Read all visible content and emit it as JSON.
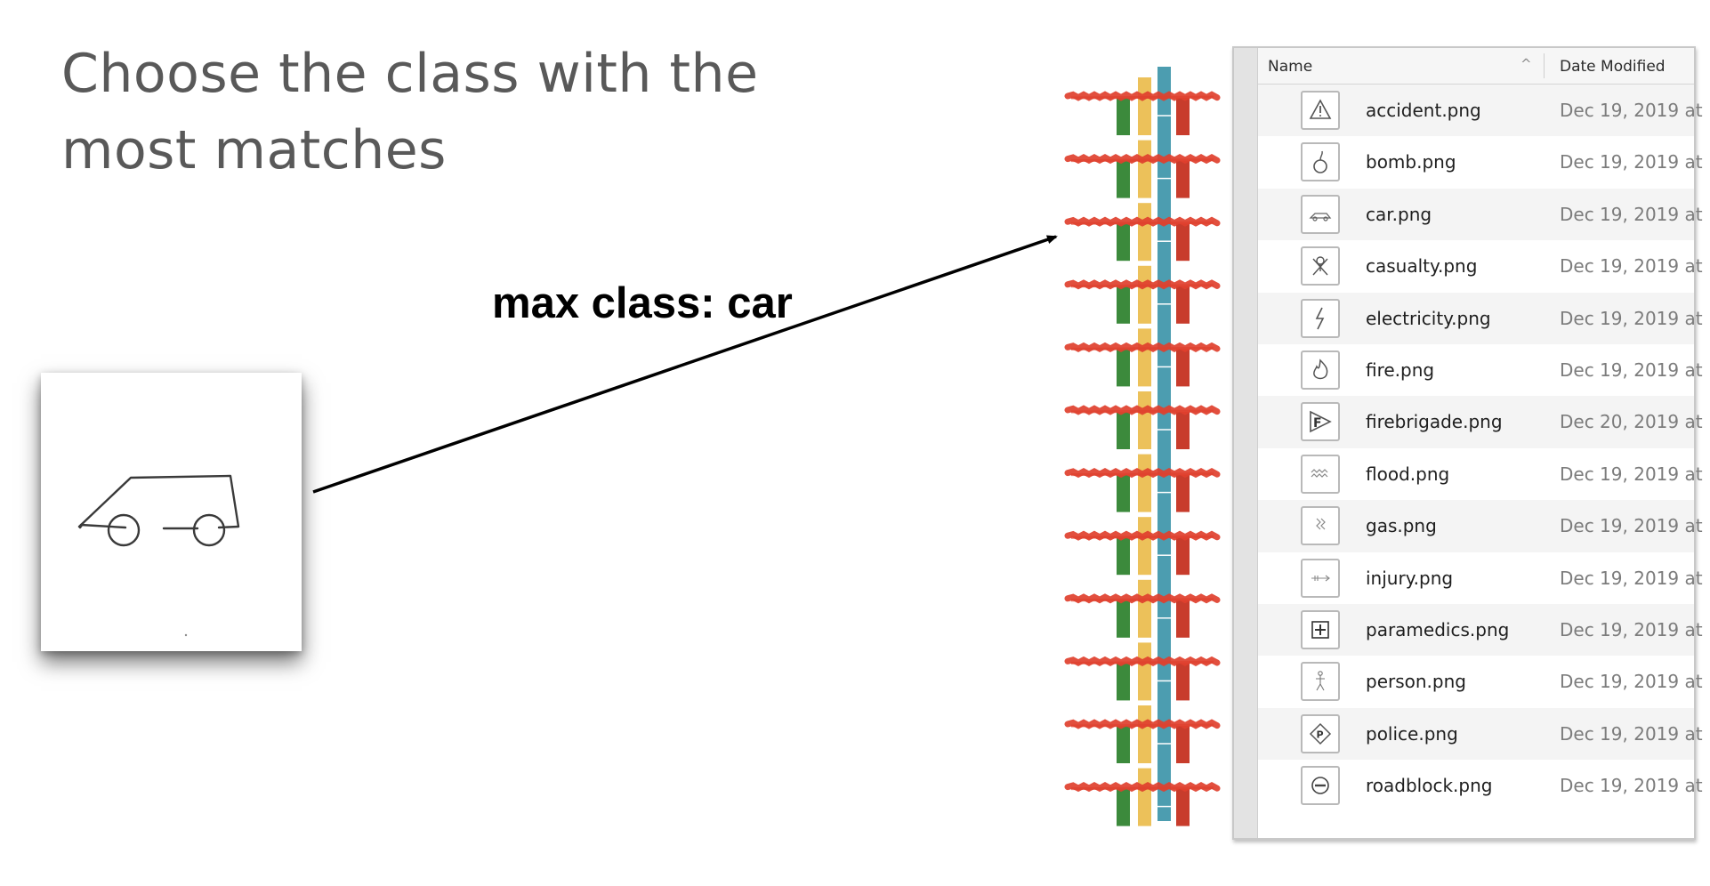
{
  "slide": {
    "title": "Choose the class with the most matches",
    "annotation": "max class: car"
  },
  "colors": {
    "title": "#595959",
    "bar_green": "#3c8a3c",
    "bar_yellow": "#ecc15a",
    "bar_blue": "#4c9db0",
    "bar_red": "#c83c2c",
    "strike_red": "#e0402e"
  },
  "bar_groups": 12,
  "finder": {
    "header": {
      "name_label": "Name",
      "sort_icon": "chevron-up-icon",
      "date_label": "Date Modified"
    },
    "files": [
      {
        "name": "accident.png",
        "date": "Dec 19, 2019 at",
        "icon": "warning-icon"
      },
      {
        "name": "bomb.png",
        "date": "Dec 19, 2019 at",
        "icon": "bomb-icon"
      },
      {
        "name": "car.png",
        "date": "Dec 19, 2019 at",
        "icon": "car-icon"
      },
      {
        "name": "casualty.png",
        "date": "Dec 19, 2019 at",
        "icon": "casualty-icon"
      },
      {
        "name": "electricity.png",
        "date": "Dec 19, 2019 at",
        "icon": "lightning-icon"
      },
      {
        "name": "fire.png",
        "date": "Dec 19, 2019 at",
        "icon": "flame-icon"
      },
      {
        "name": "firebrigade.png",
        "date": "Dec 20, 2019 at",
        "icon": "firebrigade-icon"
      },
      {
        "name": "flood.png",
        "date": "Dec 19, 2019 at",
        "icon": "flood-icon"
      },
      {
        "name": "gas.png",
        "date": "Dec 19, 2019 at",
        "icon": "gas-icon"
      },
      {
        "name": "injury.png",
        "date": "Dec 19, 2019 at",
        "icon": "injury-icon"
      },
      {
        "name": "paramedics.png",
        "date": "Dec 19, 2019 at",
        "icon": "plus-box-icon"
      },
      {
        "name": "person.png",
        "date": "Dec 19, 2019 at",
        "icon": "person-icon"
      },
      {
        "name": "police.png",
        "date": "Dec 19, 2019 at",
        "icon": "police-icon"
      },
      {
        "name": "roadblock.png",
        "date": "Dec 19, 2019 at",
        "icon": "roadblock-icon"
      }
    ]
  }
}
